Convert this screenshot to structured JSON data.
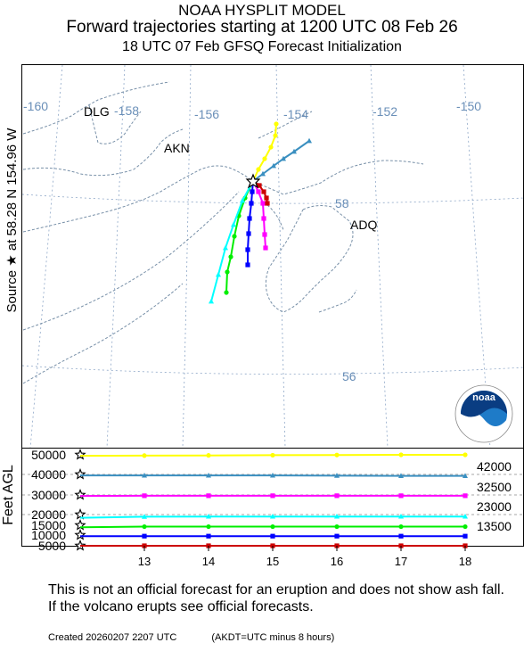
{
  "header": {
    "line1": "NOAA HYSPLIT MODEL",
    "line2": "Forward trajectories starting at 1200 UTC 08 Feb 26",
    "line3": "18 UTC 07 Feb    GFSQ  Forecast Initialization"
  },
  "side_label": "Source ★ at   58.28 N  154.96 W",
  "map": {
    "lon_labels": [
      "-160",
      "-158",
      "-156",
      "-154",
      "-152",
      "-150"
    ],
    "lat_labels": [
      "58",
      "56"
    ],
    "places": [
      {
        "name": "DLG"
      },
      {
        "name": "AKN"
      },
      {
        "name": "ADQ"
      }
    ],
    "logo_text": "noaa"
  },
  "chart_data": {
    "type": "line",
    "title": "Forward trajectories starting at 1200 UTC 08 Feb 26",
    "xlabel": "",
    "ylabel": "Feet AGL",
    "x": [
      12,
      13,
      14,
      15,
      16,
      17,
      18
    ],
    "xticks": [
      "13",
      "14",
      "15",
      "16",
      "17",
      "18"
    ],
    "xlim": [
      12,
      18
    ],
    "ylim": [
      5000,
      50000
    ],
    "yticks": [
      "50000",
      "40000",
      "30000",
      "20000",
      "15000",
      "10000",
      "5000"
    ],
    "series": [
      {
        "color": "#ffff00",
        "marker": "circle",
        "values": [
          49500,
          49600,
          49700,
          49800,
          49900,
          50100,
          50300
        ]
      },
      {
        "color": "#3a8fc0",
        "marker": "triangle",
        "values": [
          39500,
          39500,
          39500,
          39500,
          39400,
          39300,
          39300
        ]
      },
      {
        "color": "#ff00ff",
        "marker": "square",
        "values": [
          29500,
          29600,
          29600,
          29600,
          29600,
          29600,
          29600
        ]
      },
      {
        "color": "#00ffff",
        "marker": "triangle",
        "values": [
          18500,
          19000,
          19100,
          19100,
          19100,
          19100,
          19100
        ]
      },
      {
        "color": "#00ee00",
        "marker": "circle",
        "values": [
          14000,
          14300,
          14300,
          14300,
          14300,
          14300,
          14300
        ]
      },
      {
        "color": "#0000ff",
        "marker": "square",
        "values": [
          9500,
          9500,
          9500,
          9500,
          9500,
          9500,
          9500
        ]
      },
      {
        "color": "#cc0000",
        "marker": "square",
        "values": [
          5000,
          5000,
          5000,
          5000,
          5000,
          5000,
          5000
        ]
      }
    ],
    "right_labels": [
      "42000",
      "32500",
      "23000",
      "13500"
    ]
  },
  "trajectories": [
    {
      "color": "#ffff00",
      "points": [
        [
          284,
          203
        ],
        [
          290,
          190
        ],
        [
          297,
          178
        ],
        [
          304,
          165
        ],
        [
          309,
          152
        ],
        [
          310,
          139
        ]
      ]
    },
    {
      "color": "#3a8fc0",
      "points": [
        [
          284,
          203
        ],
        [
          295,
          195
        ],
        [
          307,
          186
        ],
        [
          318,
          178
        ],
        [
          330,
          170
        ],
        [
          347,
          158
        ]
      ]
    },
    {
      "color": "#ff00ff",
      "points": [
        [
          284,
          203
        ],
        [
          290,
          215
        ],
        [
          295,
          228
        ],
        [
          296,
          245
        ],
        [
          297,
          263
        ],
        [
          298,
          278
        ]
      ]
    },
    {
      "color": "#cc0000",
      "points": [
        [
          284,
          203
        ],
        [
          291,
          208
        ],
        [
          296,
          215
        ],
        [
          299,
          222
        ],
        [
          300,
          228
        ]
      ]
    },
    {
      "color": "#0000ff",
      "points": [
        [
          284,
          203
        ],
        [
          283,
          215
        ],
        [
          282,
          228
        ],
        [
          280,
          245
        ],
        [
          279,
          262
        ],
        [
          278,
          280
        ],
        [
          278,
          297
        ]
      ]
    },
    {
      "color": "#00ee00",
      "points": [
        [
          284,
          203
        ],
        [
          275,
          222
        ],
        [
          268,
          242
        ],
        [
          263,
          265
        ],
        [
          259,
          288
        ],
        [
          255,
          305
        ],
        [
          254,
          328
        ]
      ]
    },
    {
      "color": "#00ffff",
      "points": [
        [
          284,
          203
        ],
        [
          272,
          225
        ],
        [
          262,
          252
        ],
        [
          253,
          278
        ],
        [
          245,
          308
        ],
        [
          237,
          338
        ]
      ]
    }
  ],
  "disclaimer": "This is not an official forecast for an eruption and does not show ash fall. If the volcano erupts see official forecasts.",
  "footer": {
    "created": "Created 20260207 2207 UTC",
    "note": "(AKDT=UTC minus 8 hours)"
  }
}
